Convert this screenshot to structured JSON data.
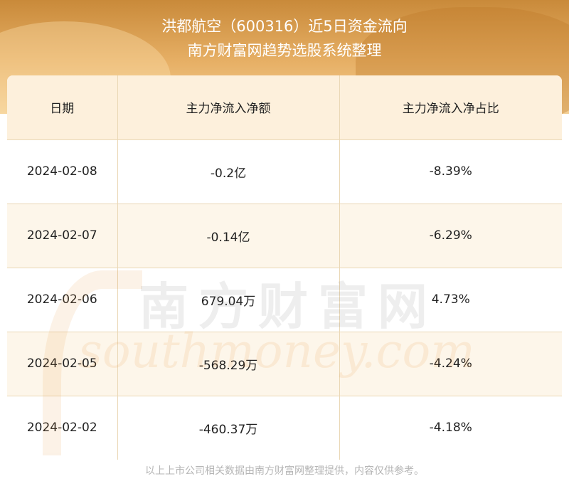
{
  "header": {
    "title_line1": "洪都航空（600316）近5日资金流向",
    "title_line2": "南方财富网趋势选股系统整理"
  },
  "table": {
    "columns": [
      "日期",
      "主力净流入净额",
      "主力净流入净占比"
    ],
    "rows": [
      {
        "date": "2024-02-08",
        "net": "-0.2亿",
        "ratio": "-8.39%"
      },
      {
        "date": "2024-02-07",
        "net": "-0.14亿",
        "ratio": "-6.29%"
      },
      {
        "date": "2024-02-06",
        "net": "679.04万",
        "ratio": "4.73%"
      },
      {
        "date": "2024-02-05",
        "net": "-568.29万",
        "ratio": "-4.24%"
      },
      {
        "date": "2024-02-02",
        "net": "-460.37万",
        "ratio": "-4.18%"
      }
    ]
  },
  "watermark": {
    "cn": "南方财富网",
    "en": "southmoney.com"
  },
  "footer": {
    "text": "以上上市公司相关数据由南方财富网整理提供，内容仅供参考。"
  },
  "colors": {
    "banner": "#e7b066",
    "header_bg": "#fdf0dc",
    "border": "#ead7b5"
  }
}
